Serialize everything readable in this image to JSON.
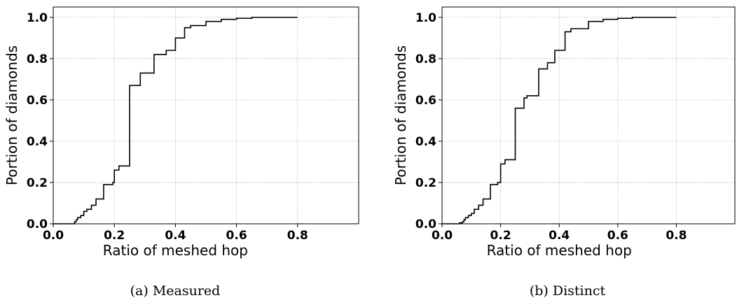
{
  "chart_data": [
    {
      "type": "line",
      "style": "step-ecdf",
      "caption": "(a) Measured",
      "xlabel": "Ratio of meshed hop",
      "ylabel": "Portion of diamonds",
      "xlim": [
        0.0,
        1.0
      ],
      "ylim": [
        0.0,
        1.05
      ],
      "xticks": [
        "0.0",
        "0.2",
        "0.4",
        "0.6",
        "0.8"
      ],
      "yticks": [
        "0.0",
        "0.2",
        "0.4",
        "0.6",
        "0.8",
        "1.0"
      ],
      "grid": true,
      "series": [
        {
          "color": "#000000",
          "points": [
            [
              0.0,
              0.0
            ],
            [
              0.06,
              0.0
            ],
            [
              0.07,
              0.01
            ],
            [
              0.075,
              0.02
            ],
            [
              0.08,
              0.03
            ],
            [
              0.09,
              0.04
            ],
            [
              0.1,
              0.06
            ],
            [
              0.11,
              0.07
            ],
            [
              0.125,
              0.09
            ],
            [
              0.14,
              0.12
            ],
            [
              0.165,
              0.19
            ],
            [
              0.195,
              0.2
            ],
            [
              0.2,
              0.26
            ],
            [
              0.215,
              0.28
            ],
            [
              0.25,
              0.67
            ],
            [
              0.285,
              0.73
            ],
            [
              0.33,
              0.82
            ],
            [
              0.37,
              0.84
            ],
            [
              0.4,
              0.9
            ],
            [
              0.43,
              0.95
            ],
            [
              0.45,
              0.96
            ],
            [
              0.5,
              0.98
            ],
            [
              0.55,
              0.99
            ],
            [
              0.6,
              0.995
            ],
            [
              0.65,
              1.0
            ],
            [
              0.8,
              1.0
            ]
          ]
        }
      ]
    },
    {
      "type": "line",
      "style": "step-ecdf",
      "caption": "(b) Distinct",
      "xlabel": "Ratio of meshed hop",
      "ylabel": "Portion of diamonds",
      "xlim": [
        0.0,
        1.0
      ],
      "ylim": [
        0.0,
        1.05
      ],
      "xticks": [
        "0.0",
        "0.2",
        "0.4",
        "0.6",
        "0.8"
      ],
      "yticks": [
        "0.0",
        "0.2",
        "0.4",
        "0.6",
        "0.8",
        "1.0"
      ],
      "grid": true,
      "series": [
        {
          "color": "#000000",
          "points": [
            [
              0.0,
              0.0
            ],
            [
              0.05,
              0.0
            ],
            [
              0.06,
              0.005
            ],
            [
              0.07,
              0.01
            ],
            [
              0.075,
              0.02
            ],
            [
              0.08,
              0.03
            ],
            [
              0.09,
              0.04
            ],
            [
              0.1,
              0.05
            ],
            [
              0.11,
              0.07
            ],
            [
              0.125,
              0.09
            ],
            [
              0.14,
              0.12
            ],
            [
              0.165,
              0.19
            ],
            [
              0.19,
              0.2
            ],
            [
              0.2,
              0.29
            ],
            [
              0.215,
              0.31
            ],
            [
              0.25,
              0.56
            ],
            [
              0.28,
              0.61
            ],
            [
              0.29,
              0.62
            ],
            [
              0.33,
              0.75
            ],
            [
              0.36,
              0.78
            ],
            [
              0.385,
              0.84
            ],
            [
              0.42,
              0.93
            ],
            [
              0.44,
              0.945
            ],
            [
              0.5,
              0.98
            ],
            [
              0.55,
              0.99
            ],
            [
              0.6,
              0.995
            ],
            [
              0.65,
              1.0
            ],
            [
              0.8,
              1.0
            ]
          ]
        }
      ]
    }
  ]
}
